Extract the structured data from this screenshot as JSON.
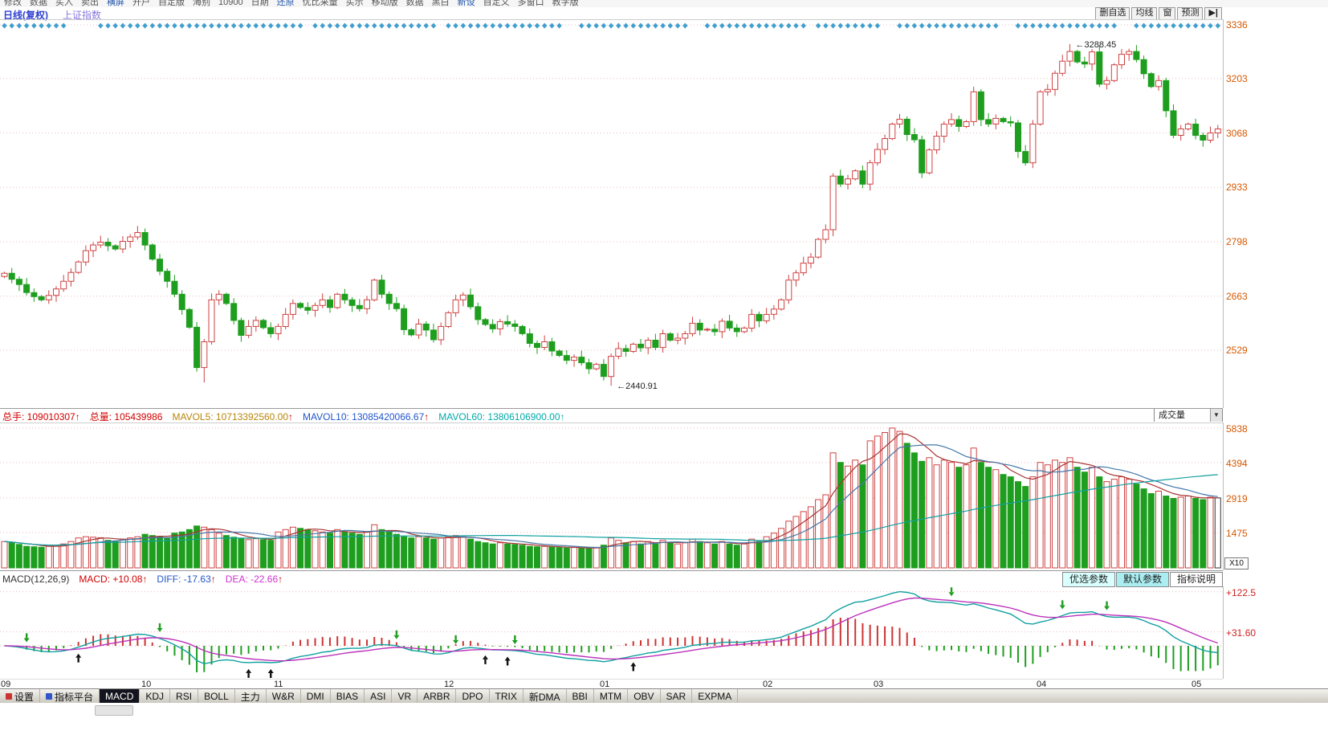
{
  "top_menu": {
    "items": [
      "修改",
      "数据",
      "买入",
      "卖出",
      "横屏",
      "开户",
      "自定版",
      "海别",
      "10900",
      "日期",
      "还原",
      "优比采量",
      "买示",
      "移动版",
      "数据",
      "黑白",
      "新设",
      "自定义",
      "多窗口",
      "教学版"
    ]
  },
  "header": {
    "period_label": "日线(复权)",
    "symbol_label": "上证指数",
    "buttons": [
      "删自选",
      "均线",
      "窗",
      "预测"
    ],
    "nav_button": "▶|"
  },
  "main_chart": {
    "price_axis_labels": [
      "3336",
      "3203",
      "3068",
      "2933",
      "2798",
      "2663",
      "2529"
    ]
  },
  "volume": {
    "segments": [
      {
        "label": "总手:",
        "value": "109010307",
        "arrow": "↑",
        "color": "#d00000",
        "arrow_color": "#d00000"
      },
      {
        "label": "总量:",
        "value": "105439986",
        "arrow": "",
        "color": "#d00000",
        "arrow_color": "#d00000"
      },
      {
        "label": "MAVOL5:",
        "value": "10713392560.00",
        "arrow": "↑",
        "color": "#b8860b",
        "arrow_color": "#d00000"
      },
      {
        "label": "MAVOL10:",
        "value": "13085420066.67",
        "arrow": "↑",
        "color": "#2255cc",
        "arrow_color": "#d00000"
      },
      {
        "label": "MAVOL60:",
        "value": "13806106900.00",
        "arrow": "↑",
        "color": "#00aaaa",
        "arrow_color": "#00aaaa"
      }
    ],
    "dropdown_label": "成交量",
    "axis_labels": [
      "5838",
      "4394",
      "2919",
      "1475"
    ],
    "axis_values": [
      5838,
      4394,
      2919,
      1475
    ],
    "unit_label": "X10"
  },
  "macd_panel": {
    "segments": [
      {
        "label": "MACD(12,26,9)",
        "value": "",
        "arrow": "",
        "color": "#333333",
        "arrow_color": "#333333"
      },
      {
        "label": "MACD:",
        "value": "+10.08",
        "arrow": "↑",
        "color": "#d00000",
        "arrow_color": "#d00000"
      },
      {
        "label": "DIFF:",
        "value": "-17.63",
        "arrow": "↑",
        "color": "#2255cc",
        "arrow_color": "#d00000"
      },
      {
        "label": "DEA:",
        "value": "-22.66",
        "arrow": "↑",
        "color": "#cc33cc",
        "arrow_color": "#d00000"
      }
    ],
    "buttons": [
      {
        "label": "优选参数",
        "bg": "#d9ffff"
      },
      {
        "label": "默认参数",
        "bg": "#aaeef2"
      },
      {
        "label": "指标说明",
        "bg": "#ffffff"
      }
    ],
    "axis_labels": [
      "+122.5",
      "+31.60"
    ],
    "axis_values": [
      122.5,
      31.6
    ]
  },
  "tabbar": {
    "tabs": [
      "设置",
      "指标平台",
      "MACD",
      "KDJ",
      "RSI",
      "BOLL",
      "主力",
      "W&R",
      "DMI",
      "BIAS",
      "ASI",
      "VR",
      "ARBR",
      "DPO",
      "TRIX",
      "新DMA",
      "BBI",
      "MTM",
      "OBV",
      "SAR",
      "EXPMA"
    ],
    "active_tab": "MACD",
    "tab_icons": {
      "设置": "#cc3333",
      "指标平台": "#3355cc"
    }
  },
  "colors": {
    "up": "#cf4242",
    "down": "#1e9e1e",
    "grid": "#e9bcbc",
    "axis": "#d65800",
    "diamond": "#3f9fd0",
    "diff": "#11a0a0",
    "dea": "#bb33bb",
    "hist_pos": "#cc3333",
    "hist_neg": "#1e9e1e",
    "mavol5": "#aa3333",
    "mavol10": "#4477aa",
    "mavol60": "#11a0a0",
    "arrow_up": "#111111",
    "arrow_down": "#1e9e1e",
    "last_dash": "#cc3333"
  },
  "chart_data": {
    "type": "candlestick",
    "symbol": "上证指数",
    "period": "日线(复权)",
    "price_gridlines": [
      3336,
      3203,
      3068,
      2933,
      2798,
      2663,
      2529
    ],
    "months": [
      {
        "label": "09",
        "index": 0
      },
      {
        "label": "10",
        "index": 19
      },
      {
        "label": "11",
        "index": 37
      },
      {
        "label": "12",
        "index": 60
      },
      {
        "label": "01",
        "index": 81
      },
      {
        "label": "02",
        "index": 103
      },
      {
        "label": "03",
        "index": 118
      },
      {
        "label": "04",
        "index": 140
      },
      {
        "label": "05",
        "index": 161
      }
    ],
    "closes": [
      2720,
      2705,
      2692,
      2672,
      2662,
      2654,
      2665,
      2681,
      2700,
      2722,
      2748,
      2776,
      2790,
      2797,
      2788,
      2780,
      2799,
      2810,
      2821,
      2790,
      2755,
      2725,
      2700,
      2668,
      2630,
      2586,
      2486,
      2550,
      2654,
      2668,
      2645,
      2603,
      2566,
      2588,
      2603,
      2585,
      2570,
      2588,
      2618,
      2645,
      2635,
      2628,
      2640,
      2654,
      2635,
      2668,
      2654,
      2640,
      2632,
      2654,
      2703,
      2668,
      2645,
      2632,
      2580,
      2567,
      2594,
      2579,
      2555,
      2588,
      2622,
      2654,
      2666,
      2637,
      2605,
      2593,
      2582,
      2600,
      2594,
      2588,
      2570,
      2546,
      2536,
      2550,
      2527,
      2516,
      2504,
      2512,
      2498,
      2483,
      2494,
      2464,
      2514,
      2533,
      2526,
      2544,
      2535,
      2554,
      2536,
      2570,
      2554,
      2559,
      2570,
      2596,
      2579,
      2581,
      2575,
      2601,
      2584,
      2575,
      2584,
      2618,
      2602,
      2618,
      2631,
      2654,
      2703,
      2721,
      2745,
      2760,
      2804,
      2828,
      2961,
      2941,
      2954,
      2974,
      2941,
      2994,
      3027,
      3054,
      3090,
      3102,
      3064,
      3051,
      2969,
      3026,
      3060,
      3090,
      3101,
      3084,
      3096,
      3170,
      3101,
      3090,
      3104,
      3096,
      3093,
      3022,
      2994,
      3090,
      3170,
      3176,
      3216,
      3246,
      3270,
      3244,
      3239,
      3269,
      3189,
      3198,
      3237,
      3263,
      3270,
      3250,
      3215,
      3183,
      3198,
      3123,
      3062,
      3078,
      3090,
      3062,
      3050,
      3068,
      3078
    ],
    "volumes": [
      1100,
      1050,
      980,
      900,
      880,
      860,
      900,
      950,
      1000,
      1100,
      1250,
      1300,
      1280,
      1260,
      1150,
      1100,
      1200,
      1250,
      1300,
      1400,
      1350,
      1300,
      1250,
      1450,
      1500,
      1600,
      1750,
      1700,
      1600,
      1450,
      1350,
      1280,
      1220,
      1180,
      1220,
      1180,
      1150,
      1500,
      1600,
      1700,
      1650,
      1600,
      1550,
      1500,
      1450,
      1600,
      1500,
      1450,
      1400,
      1500,
      1800,
      1600,
      1500,
      1400,
      1300,
      1250,
      1300,
      1250,
      1200,
      1250,
      1300,
      1350,
      1300,
      1200,
      1100,
      1050,
      1000,
      1050,
      1000,
      980,
      950,
      900,
      880,
      900,
      870,
      850,
      830,
      850,
      820,
      800,
      850,
      950,
      1250,
      1150,
      1050,
      1100,
      1000,
      1100,
      1000,
      1150,
      1050,
      1000,
      1050,
      1200,
      1100,
      1050,
      1000,
      1100,
      1000,
      950,
      1000,
      1200,
      1100,
      1300,
      1450,
      1650,
      1950,
      2150,
      2350,
      2550,
      2850,
      3050,
      4800,
      4400,
      4250,
      4500,
      4300,
      5300,
      5500,
      5650,
      5838,
      5700,
      5200,
      4800,
      4450,
      4600,
      4300,
      4500,
      4400,
      4200,
      4300,
      5000,
      4400,
      4200,
      4100,
      3900,
      3800,
      3600,
      3400,
      3800,
      4400,
      4300,
      4500,
      4400,
      4600,
      4200,
      4000,
      4200,
      3800,
      3600,
      3700,
      3800,
      3700,
      3500,
      3300,
      3100,
      3200,
      3000,
      2900,
      2950,
      3000,
      2900,
      2850,
      2950,
      2919
    ],
    "overrides": {
      "27": {
        "low": 2449
      },
      "82": {
        "low": 2440.91
      },
      "144": {
        "high": 3288.45
      }
    },
    "annotations": [
      {
        "index": 144,
        "text": "←3288.45",
        "price": 3288.45
      },
      {
        "index": 82,
        "text": "←2440.91",
        "price": 2440.91
      }
    ],
    "key_points": {
      "high": "3288.45",
      "low": "2440.91"
    },
    "signal_arrows": {
      "up": [
        10,
        33,
        36,
        65,
        68,
        85
      ],
      "down": [
        3,
        21,
        53,
        61,
        69,
        128,
        143,
        149
      ]
    },
    "diamond_ranges": [
      [
        0,
        8
      ],
      [
        13,
        40
      ],
      [
        42,
        58
      ],
      [
        60,
        75
      ],
      [
        78,
        92
      ],
      [
        95,
        108
      ],
      [
        110,
        118
      ],
      [
        121,
        134
      ],
      [
        137,
        150
      ],
      [
        153,
        164
      ]
    ],
    "macd_display": {
      "macd": "+10.08",
      "diff": "-17.63",
      "dea": "-22.66"
    }
  }
}
